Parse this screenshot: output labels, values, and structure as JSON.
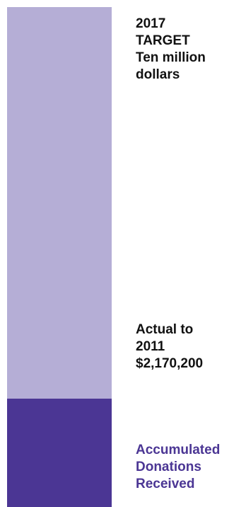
{
  "chart_data": {
    "type": "bar",
    "orientation": "vertical",
    "stacked": true,
    "unit": "dollars",
    "target": 10000000,
    "actual": 2170200,
    "segments": [
      {
        "key": "received",
        "value": 2170200,
        "color": "#4b3694"
      },
      {
        "key": "remaining",
        "value": 7829800,
        "color": "#b5aed6"
      }
    ],
    "labels": {
      "target_lines": [
        "2017",
        "TARGET",
        "Ten million",
        "dollars"
      ],
      "actual_lines": [
        "Actual to",
        "2011",
        "$2,170,200"
      ],
      "received_lines": [
        "Accumulated",
        "Donations",
        "Received"
      ]
    },
    "label_colors": {
      "target": "#111111",
      "actual": "#111111",
      "received": "#4b3694"
    },
    "grid": false,
    "legend": "none"
  }
}
